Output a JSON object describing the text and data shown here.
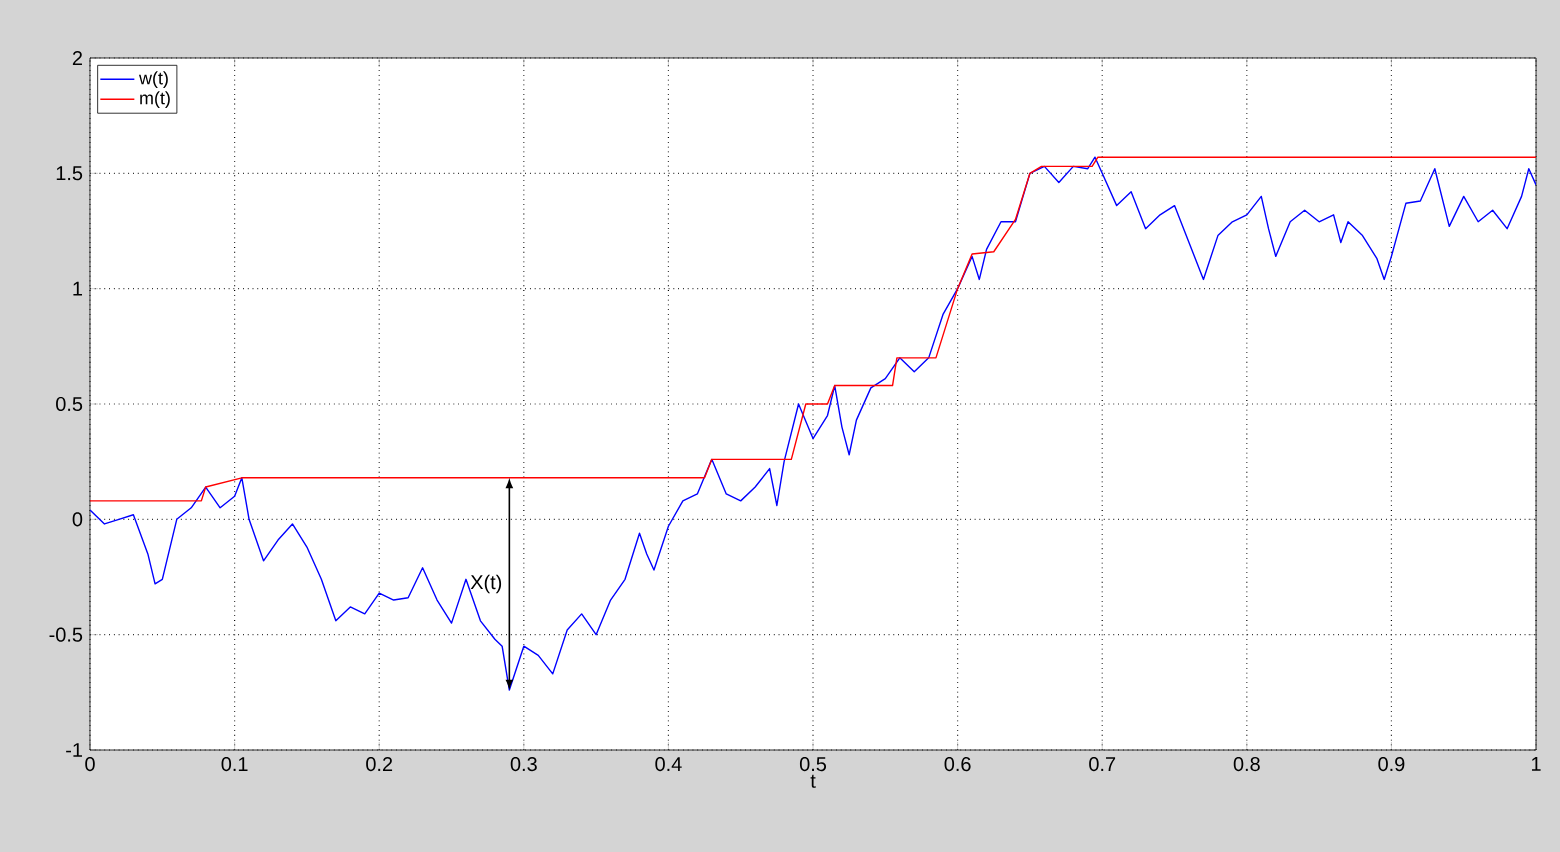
{
  "chart_data": {
    "type": "line",
    "xlabel": "t",
    "xlim": [
      0,
      1
    ],
    "ylim": [
      -1,
      2
    ],
    "xticks": [
      0,
      0.1,
      0.2,
      0.3,
      0.4,
      0.5,
      0.6,
      0.7,
      0.8,
      0.9,
      1
    ],
    "yticks": [
      -1,
      -0.5,
      0,
      0.5,
      1,
      1.5,
      2
    ],
    "grid": true,
    "legend": "top left",
    "line_style": "solid",
    "marker": "none",
    "series": [
      {
        "name": "w(t)",
        "color": "#0000ff",
        "x": [
          0,
          0.01,
          0.02,
          0.03,
          0.04,
          0.045,
          0.05,
          0.06,
          0.07,
          0.08,
          0.09,
          0.1,
          0.105,
          0.11,
          0.12,
          0.13,
          0.14,
          0.15,
          0.16,
          0.17,
          0.18,
          0.19,
          0.2,
          0.21,
          0.22,
          0.23,
          0.24,
          0.25,
          0.26,
          0.27,
          0.28,
          0.285,
          0.29,
          0.3,
          0.31,
          0.32,
          0.33,
          0.34,
          0.35,
          0.36,
          0.37,
          0.38,
          0.385,
          0.39,
          0.4,
          0.41,
          0.42,
          0.43,
          0.44,
          0.45,
          0.46,
          0.47,
          0.475,
          0.48,
          0.49,
          0.5,
          0.51,
          0.515,
          0.52,
          0.525,
          0.53,
          0.54,
          0.55,
          0.56,
          0.57,
          0.58,
          0.59,
          0.6,
          0.61,
          0.615,
          0.62,
          0.63,
          0.64,
          0.65,
          0.66,
          0.67,
          0.68,
          0.69,
          0.695,
          0.7,
          0.71,
          0.72,
          0.73,
          0.74,
          0.75,
          0.76,
          0.77,
          0.78,
          0.79,
          0.8,
          0.81,
          0.815,
          0.82,
          0.83,
          0.84,
          0.85,
          0.86,
          0.865,
          0.87,
          0.88,
          0.89,
          0.895,
          0.9,
          0.91,
          0.92,
          0.93,
          0.94,
          0.95,
          0.96,
          0.97,
          0.98,
          0.99,
          0.995,
          1
        ],
        "values": [
          0.04,
          -0.02,
          0.0,
          0.02,
          -0.15,
          -0.28,
          -0.26,
          0.0,
          0.05,
          0.14,
          0.05,
          0.1,
          0.18,
          0.0,
          -0.18,
          -0.09,
          -0.02,
          -0.12,
          -0.26,
          -0.44,
          -0.38,
          -0.41,
          -0.32,
          -0.35,
          -0.34,
          -0.21,
          -0.35,
          -0.45,
          -0.26,
          -0.44,
          -0.52,
          -0.55,
          -0.74,
          -0.55,
          -0.59,
          -0.67,
          -0.48,
          -0.41,
          -0.5,
          -0.35,
          -0.26,
          -0.06,
          -0.15,
          -0.22,
          -0.03,
          0.08,
          0.11,
          0.26,
          0.11,
          0.08,
          0.14,
          0.22,
          0.06,
          0.25,
          0.5,
          0.35,
          0.45,
          0.58,
          0.4,
          0.28,
          0.43,
          0.57,
          0.61,
          0.7,
          0.64,
          0.7,
          0.89,
          1.0,
          1.14,
          1.04,
          1.17,
          1.29,
          1.29,
          1.5,
          1.53,
          1.46,
          1.53,
          1.52,
          1.57,
          1.5,
          1.36,
          1.42,
          1.26,
          1.32,
          1.36,
          1.2,
          1.04,
          1.23,
          1.29,
          1.32,
          1.4,
          1.26,
          1.14,
          1.29,
          1.34,
          1.29,
          1.32,
          1.2,
          1.29,
          1.23,
          1.13,
          1.04,
          1.14,
          1.37,
          1.38,
          1.52,
          1.27,
          1.4,
          1.29,
          1.34,
          1.26,
          1.4,
          1.52,
          1.45
        ]
      },
      {
        "name": "m(t)",
        "color": "#ff0000",
        "x": [
          0,
          0.077,
          0.08,
          0.105,
          0.425,
          0.43,
          0.485,
          0.495,
          0.51,
          0.515,
          0.555,
          0.558,
          0.585,
          0.6,
          0.61,
          0.625,
          0.64,
          0.65,
          0.658,
          0.693,
          0.697,
          1
        ],
        "values": [
          0.08,
          0.08,
          0.14,
          0.18,
          0.18,
          0.26,
          0.26,
          0.5,
          0.5,
          0.58,
          0.58,
          0.7,
          0.7,
          1.0,
          1.15,
          1.16,
          1.3,
          1.5,
          1.53,
          1.53,
          1.57,
          1.57
        ]
      }
    ],
    "annotations": [
      "X(t)"
    ]
  }
}
